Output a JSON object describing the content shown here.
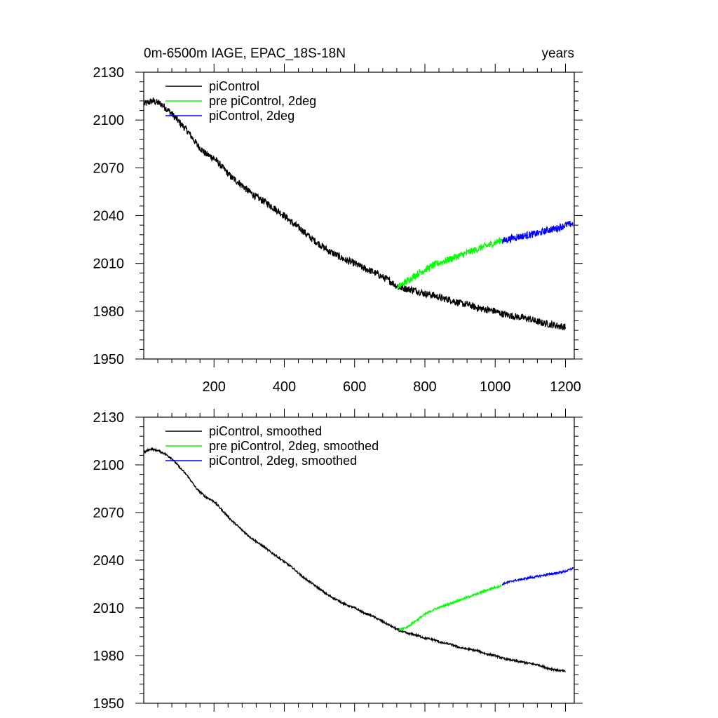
{
  "chart_data": [
    {
      "type": "line",
      "title_left": "0m-6500m IAGE, EPAC_18S-18N",
      "title_right": "years",
      "xlim": [
        0,
        1225
      ],
      "ylim": [
        1950,
        2130
      ],
      "yticks": [
        1950,
        1980,
        2010,
        2040,
        2070,
        2100,
        2130
      ],
      "xticks": [
        200,
        400,
        600,
        800,
        1000,
        1200
      ],
      "show_xtick_labels": true,
      "legend_position": "top-left",
      "noise": 2.2,
      "series": [
        {
          "name": "piControl",
          "color": "#000000",
          "points": [
            [
              1,
              2110
            ],
            [
              25,
              2112
            ],
            [
              50,
              2110
            ],
            [
              75,
              2105
            ],
            [
              100,
              2099
            ],
            [
              125,
              2093
            ],
            [
              150,
              2085
            ],
            [
              175,
              2079
            ],
            [
              200,
              2076
            ],
            [
              225,
              2070
            ],
            [
              250,
              2064
            ],
            [
              275,
              2060
            ],
            [
              300,
              2055
            ],
            [
              325,
              2051
            ],
            [
              350,
              2048
            ],
            [
              375,
              2044
            ],
            [
              400,
              2040
            ],
            [
              425,
              2035
            ],
            [
              450,
              2031
            ],
            [
              475,
              2026
            ],
            [
              500,
              2022
            ],
            [
              525,
              2018
            ],
            [
              550,
              2015
            ],
            [
              575,
              2012
            ],
            [
              600,
              2010
            ],
            [
              625,
              2007
            ],
            [
              650,
              2005
            ],
            [
              675,
              2002
            ],
            [
              700,
              1999
            ],
            [
              725,
              1995
            ],
            [
              750,
              1994
            ],
            [
              775,
              1993
            ],
            [
              800,
              1991
            ],
            [
              825,
              1990
            ],
            [
              850,
              1988
            ],
            [
              875,
              1987
            ],
            [
              900,
              1985
            ],
            [
              925,
              1984
            ],
            [
              950,
              1982
            ],
            [
              975,
              1981
            ],
            [
              1000,
              1980
            ],
            [
              1025,
              1978
            ],
            [
              1050,
              1977
            ],
            [
              1075,
              1976
            ],
            [
              1100,
              1975
            ],
            [
              1125,
              1973
            ],
            [
              1150,
              1972
            ],
            [
              1175,
              1971
            ],
            [
              1200,
              1970
            ]
          ]
        },
        {
          "name": "pre piControl, 2deg",
          "color": "#00ff00",
          "points": [
            [
              722,
              1995
            ],
            [
              750,
              1999
            ],
            [
              775,
              2003
            ],
            [
              800,
              2006
            ],
            [
              825,
              2009
            ],
            [
              850,
              2011
            ],
            [
              875,
              2013
            ],
            [
              900,
              2015
            ],
            [
              925,
              2017
            ],
            [
              950,
              2019
            ],
            [
              975,
              2021
            ],
            [
              1000,
              2023
            ],
            [
              1020,
              2025
            ]
          ]
        },
        {
          "name": "piControl, 2deg",
          "color": "#0000ff",
          "points": [
            [
              1020,
              2024
            ],
            [
              1050,
              2026
            ],
            [
              1075,
              2027
            ],
            [
              1100,
              2028
            ],
            [
              1125,
              2029
            ],
            [
              1150,
              2031
            ],
            [
              1175,
              2032
            ],
            [
              1200,
              2034
            ],
            [
              1222,
              2035
            ]
          ]
        }
      ]
    },
    {
      "type": "line",
      "xlim": [
        0,
        1225
      ],
      "ylim": [
        1950,
        2130
      ],
      "yticks": [
        1950,
        1980,
        2010,
        2040,
        2070,
        2100,
        2130
      ],
      "xticks": [
        200,
        400,
        600,
        800,
        1000,
        1200
      ],
      "show_xtick_labels": false,
      "legend_position": "top-left",
      "noise": 0.6,
      "series": [
        {
          "name": "piControl, smoothed",
          "color": "#000000",
          "points": [
            [
              1,
              2108
            ],
            [
              20,
              2110
            ],
            [
              40,
              2109
            ],
            [
              60,
              2107
            ],
            [
              80,
              2104
            ],
            [
              100,
              2099
            ],
            [
              125,
              2093
            ],
            [
              150,
              2085
            ],
            [
              175,
              2080
            ],
            [
              200,
              2077
            ],
            [
              225,
              2071
            ],
            [
              250,
              2065
            ],
            [
              275,
              2060
            ],
            [
              300,
              2055
            ],
            [
              325,
              2051
            ],
            [
              350,
              2047
            ],
            [
              375,
              2043
            ],
            [
              400,
              2039
            ],
            [
              425,
              2035
            ],
            [
              450,
              2030
            ],
            [
              475,
              2026
            ],
            [
              500,
              2022
            ],
            [
              525,
              2018
            ],
            [
              550,
              2015
            ],
            [
              575,
              2012
            ],
            [
              600,
              2010
            ],
            [
              625,
              2007
            ],
            [
              650,
              2005
            ],
            [
              675,
              2002
            ],
            [
              700,
              1999
            ],
            [
              725,
              1996
            ],
            [
              750,
              1994
            ],
            [
              775,
              1993
            ],
            [
              800,
              1991
            ],
            [
              825,
              1990
            ],
            [
              850,
              1988
            ],
            [
              875,
              1987
            ],
            [
              900,
              1985
            ],
            [
              925,
              1984
            ],
            [
              950,
              1983
            ],
            [
              975,
              1981
            ],
            [
              1000,
              1980
            ],
            [
              1025,
              1978
            ],
            [
              1050,
              1977
            ],
            [
              1075,
              1976
            ],
            [
              1100,
              1975
            ],
            [
              1125,
              1974
            ],
            [
              1150,
              1972
            ],
            [
              1175,
              1971
            ],
            [
              1200,
              1970
            ]
          ]
        },
        {
          "name": "pre piControl, 2deg, smoothed",
          "color": "#00ff00",
          "points": [
            [
              725,
              1996
            ],
            [
              750,
              1998
            ],
            [
              775,
              2002
            ],
            [
              800,
              2006
            ],
            [
              825,
              2009
            ],
            [
              850,
              2011
            ],
            [
              875,
              2013
            ],
            [
              900,
              2015
            ],
            [
              925,
              2017
            ],
            [
              950,
              2019
            ],
            [
              975,
              2021
            ],
            [
              1000,
              2023
            ],
            [
              1018,
              2024
            ]
          ]
        },
        {
          "name": "piControl, 2deg, smoothed",
          "color": "#0000ff",
          "points": [
            [
              1020,
              2025
            ],
            [
              1050,
              2027
            ],
            [
              1075,
              2028
            ],
            [
              1100,
              2029
            ],
            [
              1125,
              2030
            ],
            [
              1150,
              2031
            ],
            [
              1175,
              2032
            ],
            [
              1200,
              2033
            ],
            [
              1222,
              2035
            ]
          ]
        }
      ]
    }
  ]
}
